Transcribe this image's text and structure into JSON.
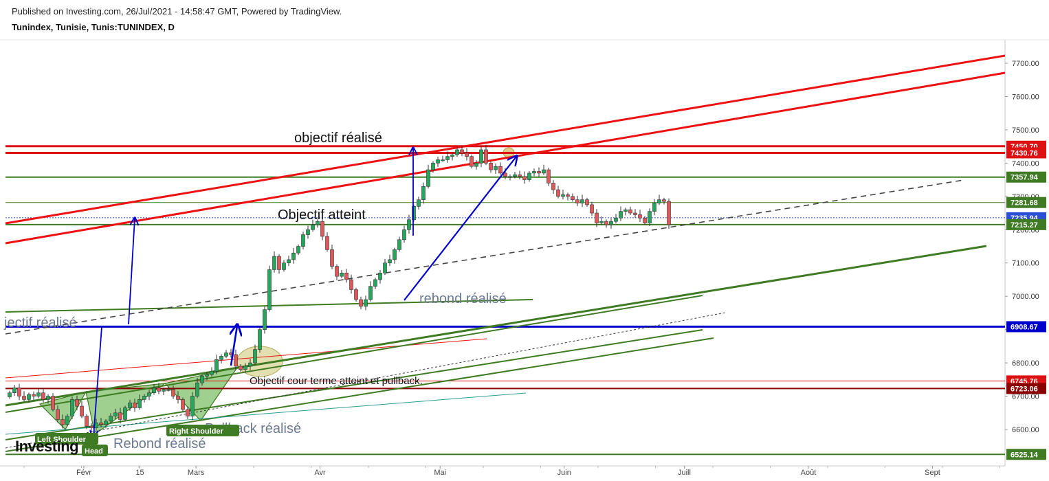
{
  "header": {
    "published": "Published on Investing.com, 26/Jul/2021 - 14:58:47 GMT, Powered by TradingView.",
    "title": "Tunindex, Tunisie, Tunis:TUNINDEX, D"
  },
  "watermark": "Investing",
  "colors": {
    "up": "#26a65b",
    "down": "#e0595a",
    "red_line": "#ee1111",
    "green_line": "#3e7b22",
    "blue_line": "#0000cc",
    "badge_green": "#3e7b22",
    "badge_red": "#dd1111",
    "badge_blue": "#2b4fd6"
  },
  "chart_data": {
    "type": "candlestick",
    "title": "Tunindex, Tunisie, Tunis:TUNINDEX, D",
    "ylim": [
      6500,
      7760
    ],
    "x_start": "2021-01-04",
    "x_end": "2021-09-30",
    "x_ticks": [
      {
        "date": "2021-02-01",
        "label": "Févr"
      },
      {
        "date": "2021-02-15",
        "label": "15"
      },
      {
        "date": "2021-03-01",
        "label": "Mars"
      },
      {
        "date": "2021-04-01",
        "label": "Avr"
      },
      {
        "date": "2021-05-01",
        "label": "Mai"
      },
      {
        "date": "2021-06-01",
        "label": "Juin"
      },
      {
        "date": "2021-07-01",
        "label": "Juill"
      },
      {
        "date": "2021-08-01",
        "label": "Août"
      },
      {
        "date": "2021-09-01",
        "label": "Sept"
      }
    ],
    "y_ticks": [
      6600,
      6700,
      6800,
      6900,
      7000,
      7100,
      7200,
      7300,
      7400,
      7500,
      7600,
      7700
    ],
    "y_tick_labels": [
      "6600.00",
      "6700.00",
      "6800.00",
      "6900.00",
      "7000.00",
      "7100.00",
      "7200.00",
      "7300.00",
      "7400.00",
      "7500.00",
      "7600.00",
      "7700.00"
    ],
    "price_levels": [
      {
        "value": 7450.7,
        "label": "7450.70",
        "color": "#dd1111",
        "style": "thick"
      },
      {
        "value": 7430.76,
        "label": "7430.76",
        "color": "#dd1111",
        "style": "thick"
      },
      {
        "value": 7357.94,
        "label": "7357.94",
        "color": "#3e7b22",
        "style": "medium"
      },
      {
        "value": 7281.68,
        "label": "7281.68",
        "color": "#3e7b22",
        "style": "thin"
      },
      {
        "value": 7235.94,
        "label": "7235.94",
        "color": "#2b4fd6",
        "style": "dotted"
      },
      {
        "value": 7215.27,
        "label": "7215.27",
        "color": "#3e7b22",
        "style": "medium"
      },
      {
        "value": 6908.67,
        "label": "6908.67",
        "color": "#0000cc",
        "style": "thick"
      },
      {
        "value": 6745.76,
        "label": "6745.76",
        "color": "#dd1111",
        "style": "thin"
      },
      {
        "value": 6723.06,
        "label": "6723.06",
        "color": "#8b0000",
        "style": "medium"
      },
      {
        "value": 6525.14,
        "label": "6525.14",
        "color": "#3e7b22",
        "style": "medium"
      }
    ],
    "closes": [
      6710,
      6725,
      6700,
      6690,
      6705,
      6700,
      6710,
      6690,
      6700,
      6660,
      6630,
      6615,
      6640,
      6690,
      6670,
      6640,
      6610,
      6605,
      6620,
      6615,
      6625,
      6640,
      6650,
      6630,
      6665,
      6680,
      6665,
      6690,
      6700,
      6710,
      6725,
      6715,
      6720,
      6720,
      6700,
      6690,
      6660,
      6640,
      6700,
      6740,
      6760,
      6765,
      6775,
      6810,
      6820,
      6830,
      6825,
      6790,
      6780,
      6790,
      6800,
      6840,
      6900,
      6960,
      7080,
      7120,
      7080,
      7100,
      7110,
      7130,
      7150,
      7185,
      7200,
      7215,
      7225,
      7180,
      7140,
      7090,
      7060,
      7070,
      7050,
      7020,
      6990,
      6970,
      6990,
      7030,
      7050,
      7070,
      7100,
      7110,
      7140,
      7170,
      7200,
      7230,
      7270,
      7290,
      7330,
      7380,
      7400,
      7410,
      7410,
      7420,
      7425,
      7440,
      7430,
      7420,
      7390,
      7400,
      7440,
      7400,
      7380,
      7390,
      7370,
      7360,
      7360,
      7365,
      7360,
      7350,
      7370,
      7375,
      7370,
      7380,
      7340,
      7320,
      7300,
      7305,
      7300,
      7290,
      7280,
      7290,
      7275,
      7250,
      7220,
      7225,
      7215,
      7225,
      7235,
      7255,
      7260,
      7250,
      7245,
      7235,
      7220,
      7255,
      7280,
      7290,
      7285,
      7215
    ]
  },
  "annotations": {
    "objectif_realise_top": "objectif réalisé",
    "objectif_atteint": "Objectif atteint",
    "rebond_realise_mid": "rebond réalisé",
    "objectif_realise_left": "jectif réalisé",
    "objectif_court_terme": "Objectif cour terme atteint et pullback.",
    "pullback_realise": "Pullback réalisé",
    "rebond_realise_low": "Rebond réalisé",
    "left_shoulder": "Left Shoulder",
    "head": "Head",
    "right_shoulder": "Right Shoulder"
  }
}
